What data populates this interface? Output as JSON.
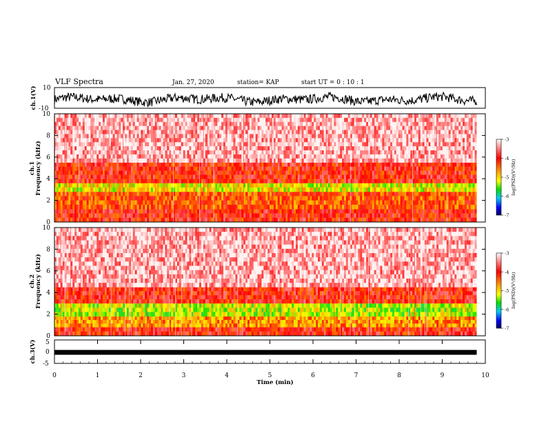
{
  "header": {
    "title": "VLF Spectra",
    "date": "Jan. 27, 2020",
    "station": "station= KAP",
    "start": "start UT =  0 : 10 : 1"
  },
  "panels": {
    "ch1": {
      "ylabel": "ch.1(V)",
      "ymax_label": "10",
      "ymin_label": "-10"
    },
    "spec1": {
      "ylabel": "ch.1\nFrequency (kHz)"
    },
    "spec2": {
      "ylabel": "ch.2\nFrequency (kHz)"
    },
    "ch3": {
      "ylabel": "ch.3(V)",
      "ymax_label": "5",
      "ymid_label": "0",
      "ymin_label": "-5"
    }
  },
  "colorbar": {
    "label": "log(PSD)(V²/Hz)",
    "ticks": [
      "-3",
      "-4",
      "-5",
      "-6",
      "-7"
    ],
    "colors": [
      "#ffffff",
      "#ff4040",
      "#ff0000",
      "#ffa000",
      "#ffff00",
      "#00e000",
      "#00c0ff",
      "#0000ff",
      "#000080"
    ]
  },
  "chart_data": {
    "type": "heatmap",
    "title": "VLF Spectra",
    "xlabel": "Time (min)",
    "xlim": [
      0,
      10
    ],
    "x_ticks": [
      "0",
      "1",
      "2",
      "3",
      "4",
      "5",
      "6",
      "7",
      "8",
      "9",
      "10"
    ],
    "data_end_min": 9.8,
    "panels": [
      {
        "name": "ch.1(V)",
        "type": "line",
        "ylim": [
          -10,
          10
        ]
      },
      {
        "name": "ch.1 Frequency (kHz)",
        "type": "heatmap",
        "ylim": [
          0,
          10
        ],
        "y_ticks": [
          "0",
          "2",
          "4",
          "6",
          "8",
          "10"
        ],
        "bands_khz": [
          {
            "range": [
              0,
              1.2
            ],
            "log_psd": -4.0
          },
          {
            "range": [
              1.2,
              2.8
            ],
            "log_psd": -4.3
          },
          {
            "range": [
              2.8,
              3.6
            ],
            "log_psd": -5.0
          },
          {
            "range": [
              3.6,
              5.5
            ],
            "log_psd": -4.0
          },
          {
            "range": [
              5.5,
              10
            ],
            "log_psd": -3.3
          }
        ]
      },
      {
        "name": "ch.2 Frequency (kHz)",
        "type": "heatmap",
        "ylim": [
          0,
          10
        ],
        "y_ticks": [
          "0",
          "2",
          "4",
          "6",
          "8",
          "10"
        ],
        "bands_khz": [
          {
            "range": [
              0,
              0.8
            ],
            "log_psd": -4.0
          },
          {
            "range": [
              0.8,
              1.8
            ],
            "log_psd": -4.6
          },
          {
            "range": [
              1.8,
              3.0
            ],
            "log_psd": -5.2
          },
          {
            "range": [
              3.0,
              4.5
            ],
            "log_psd": -4.0
          },
          {
            "range": [
              4.5,
              10
            ],
            "log_psd": -3.3
          }
        ]
      },
      {
        "name": "ch.3(V)",
        "type": "line",
        "ylim": [
          -5,
          5
        ],
        "y_ticks": [
          "5",
          "0",
          "-5"
        ],
        "level": -0.3
      }
    ],
    "colorbar": {
      "label": "log(PSD)(V²/Hz)",
      "range": [
        -7,
        -3
      ]
    }
  }
}
